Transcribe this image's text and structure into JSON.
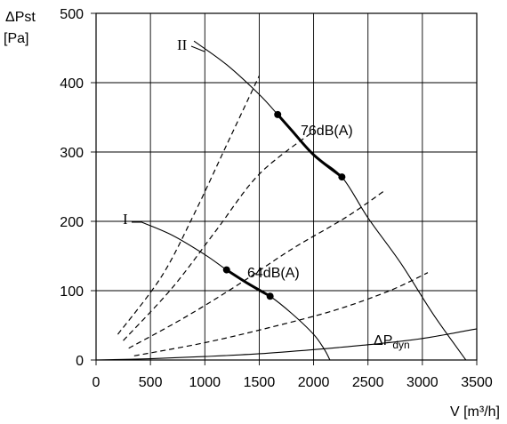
{
  "chart_data": {
    "type": "line",
    "ylabel": "ΔPst",
    "ylabel_unit": "[Pa]",
    "xlabel": "V [m³/h]",
    "xlim": [
      0,
      3500
    ],
    "ylim": [
      0,
      500
    ],
    "x_ticks": [
      0,
      500,
      1000,
      1500,
      2000,
      2500,
      3000,
      3500
    ],
    "y_ticks": [
      0,
      100,
      200,
      300,
      400,
      500
    ],
    "grid": true,
    "series": [
      {
        "name": "II",
        "style": "solid",
        "points": [
          [
            900,
            460
          ],
          [
            1200,
            426
          ],
          [
            1500,
            383
          ],
          [
            1670,
            354
          ],
          [
            1800,
            331
          ],
          [
            2000,
            296
          ],
          [
            2260,
            264
          ],
          [
            2500,
            205
          ],
          [
            2800,
            140
          ],
          [
            3100,
            66
          ],
          [
            3400,
            0
          ]
        ]
      },
      {
        "name": "I",
        "style": "solid",
        "points": [
          [
            400,
            200
          ],
          [
            700,
            180
          ],
          [
            1000,
            152
          ],
          [
            1200,
            130
          ],
          [
            1400,
            110
          ],
          [
            1600,
            92
          ],
          [
            1800,
            67
          ],
          [
            2000,
            37
          ],
          [
            2100,
            15
          ],
          [
            2150,
            0
          ]
        ]
      },
      {
        "name": "ΔPdyn",
        "style": "solid",
        "points": [
          [
            0,
            0
          ],
          [
            500,
            1.8
          ],
          [
            1000,
            5
          ],
          [
            1500,
            9
          ],
          [
            2000,
            15
          ],
          [
            2500,
            22
          ],
          [
            3000,
            31
          ],
          [
            3500,
            45
          ]
        ]
      }
    ],
    "system_curves": [
      {
        "style": "dashed",
        "points": [
          [
            200,
            37
          ],
          [
            600,
            120
          ],
          [
            900,
            210
          ],
          [
            1200,
            310
          ],
          [
            1500,
            410
          ]
        ]
      },
      {
        "style": "dashed",
        "points": [
          [
            250,
            28
          ],
          [
            700,
            104
          ],
          [
            1100,
            186
          ],
          [
            1500,
            268
          ],
          [
            2000,
            330
          ]
        ]
      },
      {
        "style": "dashed",
        "points": [
          [
            300,
            17
          ],
          [
            800,
            60
          ],
          [
            1300,
            108
          ],
          [
            1800,
            160
          ],
          [
            2300,
            206
          ],
          [
            2650,
            244
          ]
        ]
      },
      {
        "style": "dashed",
        "points": [
          [
            350,
            6
          ],
          [
            1000,
            25
          ],
          [
            1600,
            47
          ],
          [
            2200,
            72
          ],
          [
            2700,
            100
          ],
          [
            3050,
            126
          ]
        ]
      }
    ],
    "operating_segments": [
      {
        "label": "76dB(A)",
        "points": [
          [
            1670,
            354
          ],
          [
            1800,
            331
          ],
          [
            2000,
            296
          ],
          [
            2260,
            264
          ]
        ]
      },
      {
        "label": "64dB(A)",
        "points": [
          [
            1200,
            130
          ],
          [
            1400,
            110
          ],
          [
            1600,
            92
          ]
        ]
      }
    ],
    "markers": [
      [
        1670,
        354
      ],
      [
        2260,
        264
      ],
      [
        1200,
        130
      ],
      [
        1600,
        92
      ]
    ],
    "annotations": {
      "curve_II": "II",
      "curve_I": "I",
      "dyn_main": "ΔP",
      "dyn_sub": "dyn",
      "noise_high": "76dB(A)",
      "noise_low": "64dB(A)"
    }
  }
}
